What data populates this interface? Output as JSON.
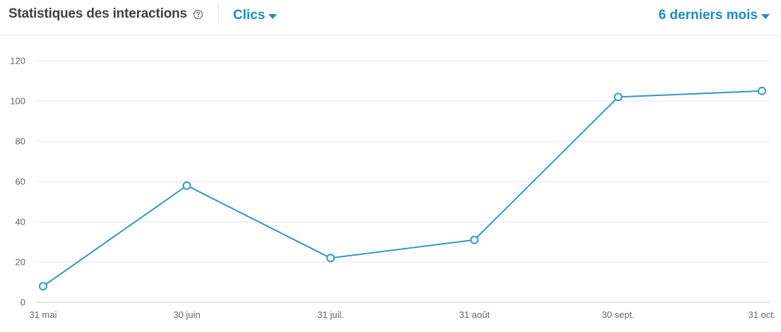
{
  "header": {
    "title": "Statistiques des interactions",
    "metric_label": "Clics",
    "period_label": "6 derniers mois"
  },
  "colors": {
    "accent": "#2f99c9",
    "grid": "#e5e5e5",
    "axis": "#cccccc"
  },
  "chart_data": {
    "type": "line",
    "title": "",
    "xlabel": "",
    "ylabel": "",
    "categories": [
      "31 mai",
      "30 juin",
      "31 juil.",
      "31 août",
      "30 sept.",
      "31 oct."
    ],
    "series": [
      {
        "values": [
          8,
          58,
          22,
          31,
          102,
          105
        ]
      }
    ],
    "ylim": [
      0,
      120
    ],
    "yticks": [
      "0",
      "20",
      "40",
      "60",
      "80",
      "100",
      "120"
    ],
    "grid": true,
    "legend": "none"
  }
}
